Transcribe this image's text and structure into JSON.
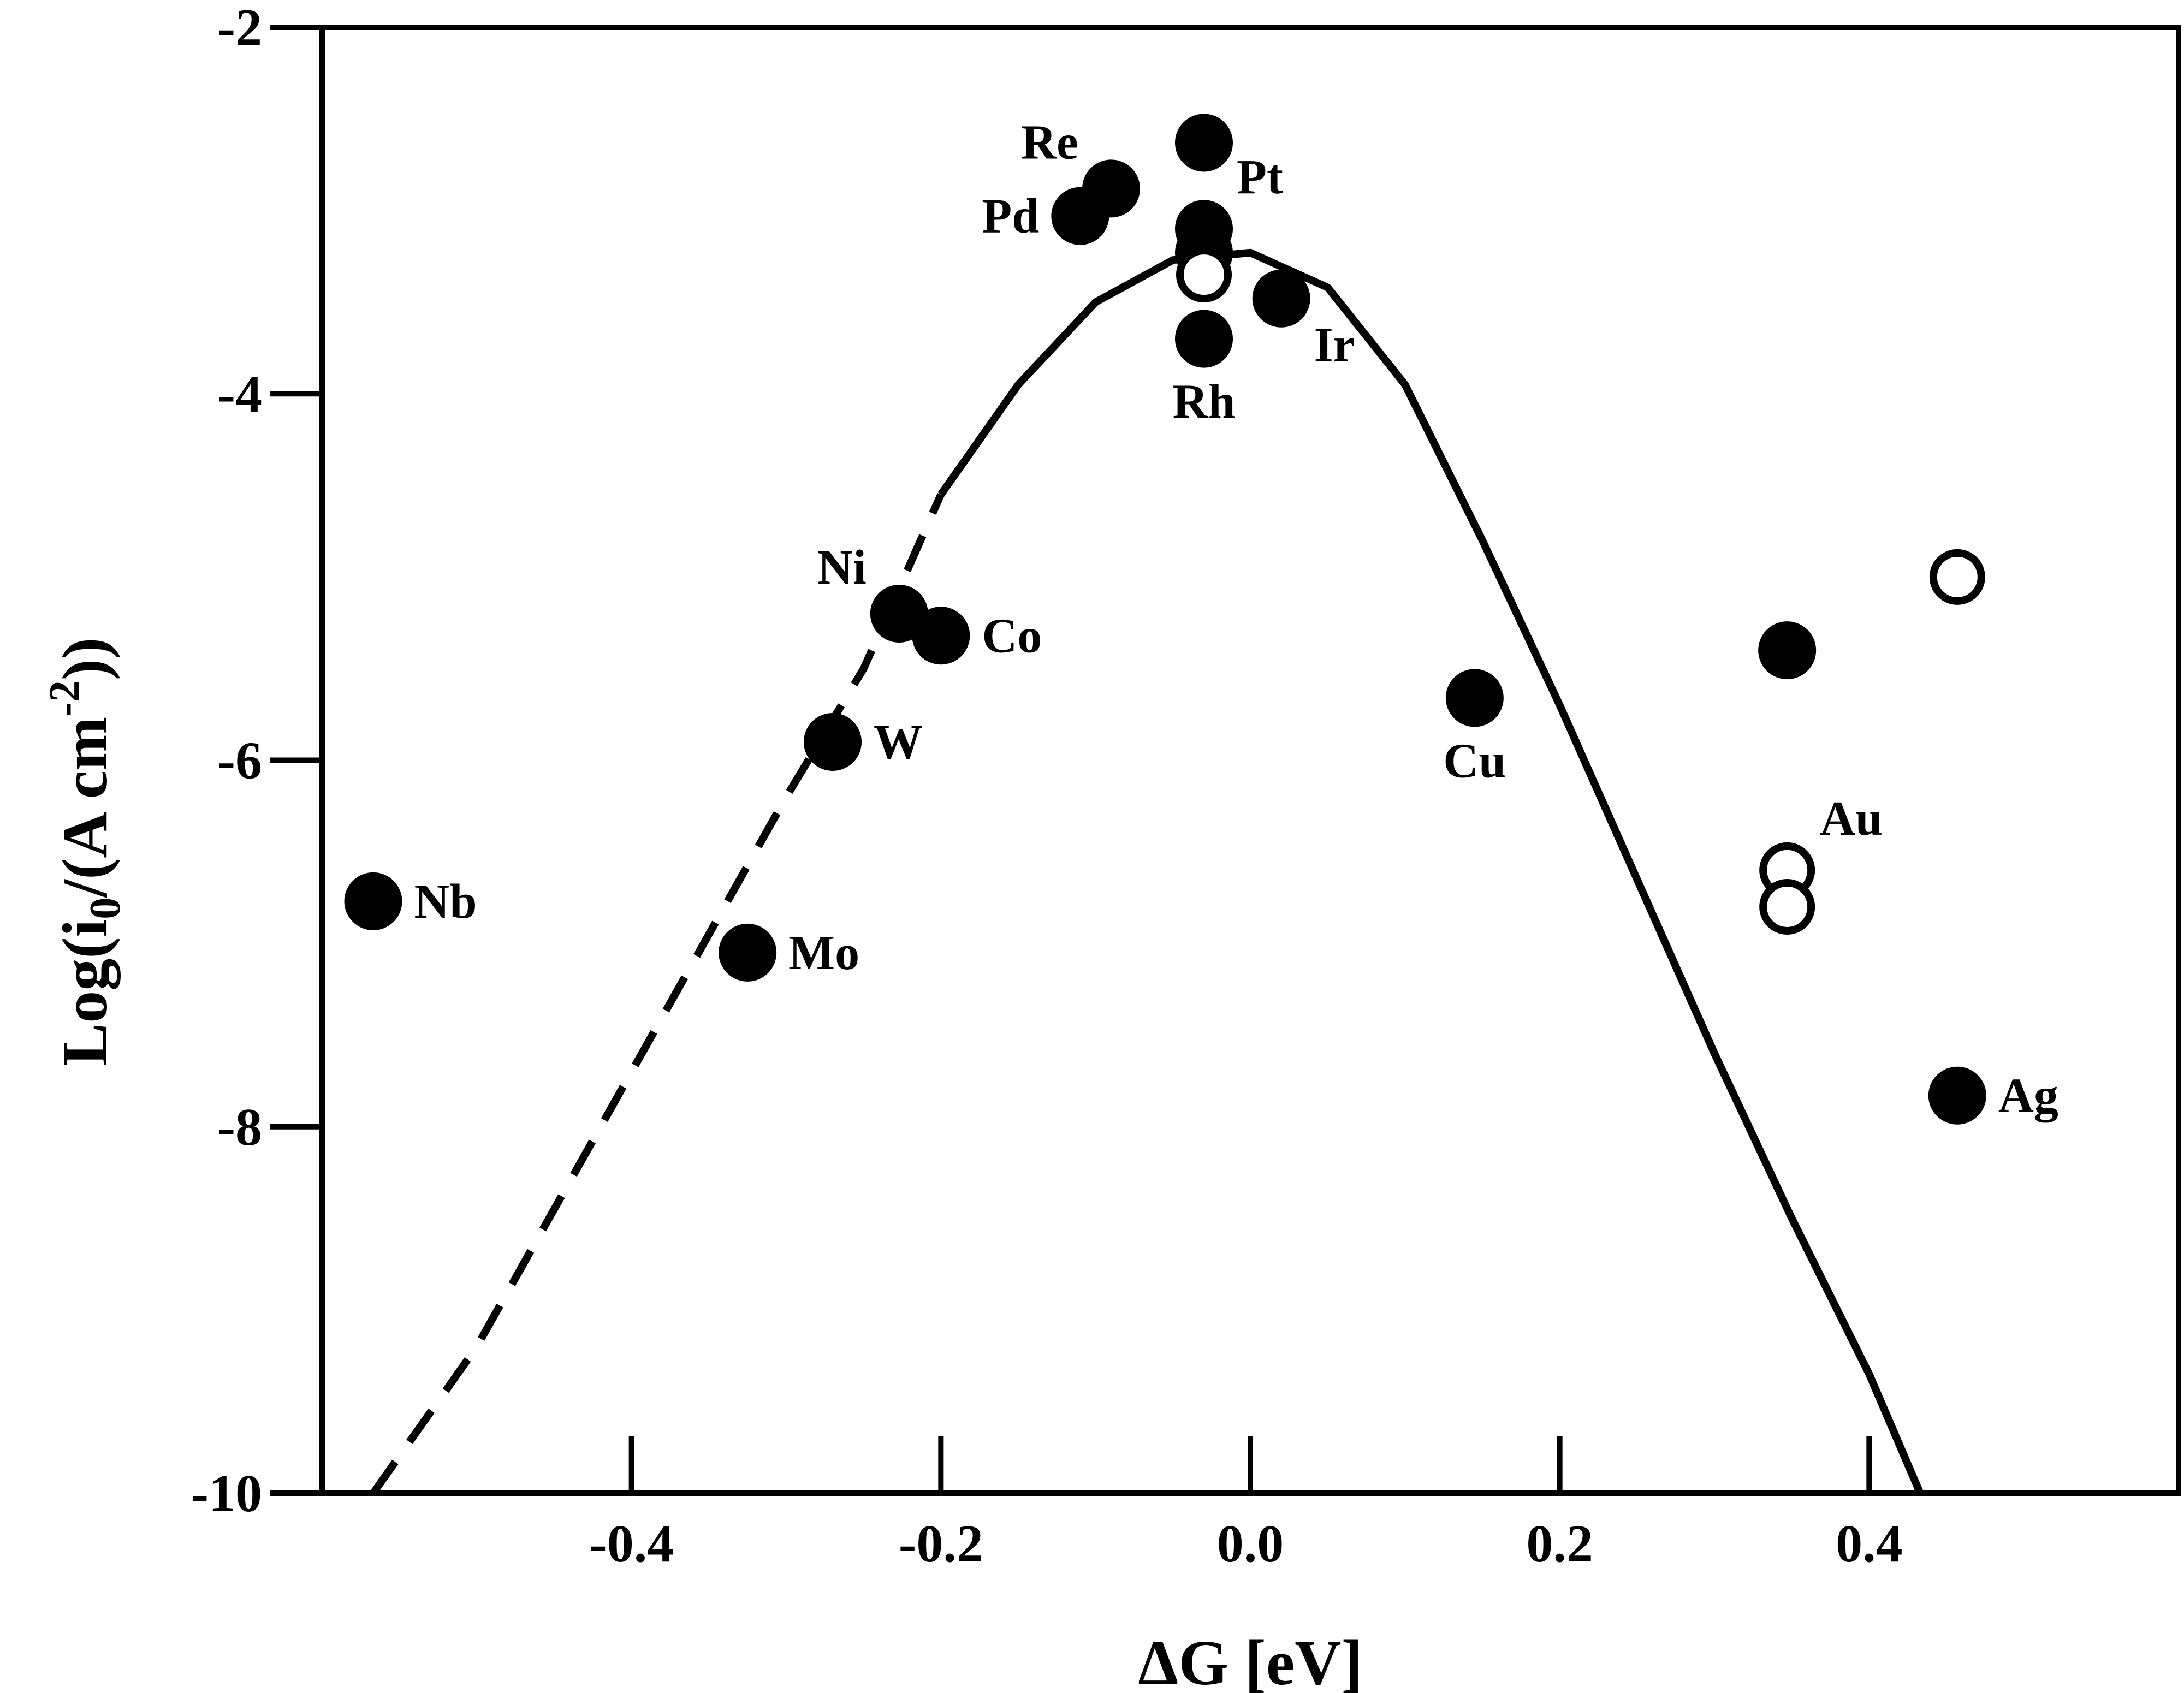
{
  "chart_data": {
    "type": "scatter",
    "title": "",
    "xlabel": "ΔG [eV]",
    "ylabel": {
      "prefix": "Log(i",
      "sub": "0",
      "mid": "/(A cm",
      "sup": "-2",
      "suffix": "))"
    },
    "xlim": [
      -0.6,
      0.6
    ],
    "ylim": [
      -10,
      -2
    ],
    "x_ticks": [
      -0.4,
      -0.2,
      0.0,
      0.2,
      0.4
    ],
    "x_tick_labels": [
      "-0.4",
      "-0.2",
      "0.0",
      "0.2",
      "0.4"
    ],
    "y_ticks": [
      -10,
      -8,
      -6,
      -4,
      -2
    ],
    "y_tick_labels": [
      "-10",
      "-8",
      "-6",
      "-4",
      "-2"
    ],
    "grid": false,
    "legend": "none",
    "colors": {
      "marker": "#000000",
      "open_marker_fill": "#ffffff",
      "curve": "#000000"
    },
    "filled_points": [
      {
        "x": -0.567,
        "y": -6.77
      },
      {
        "x": -0.325,
        "y": -7.05
      },
      {
        "x": -0.27,
        "y": -5.9
      },
      {
        "x": -0.227,
        "y": -5.2
      },
      {
        "x": -0.2,
        "y": -5.32
      },
      {
        "x": -0.11,
        "y": -3.03
      },
      {
        "x": -0.09,
        "y": -2.88
      },
      {
        "x": -0.03,
        "y": -2.63
      },
      {
        "x": -0.03,
        "y": -3.1
      },
      {
        "x": -0.03,
        "y": -3.23
      },
      {
        "x": -0.03,
        "y": -3.7
      },
      {
        "x": 0.02,
        "y": -3.48
      },
      {
        "x": 0.145,
        "y": -5.66
      },
      {
        "x": 0.347,
        "y": -5.4
      },
      {
        "x": 0.457,
        "y": -7.83
      }
    ],
    "open_points": [
      {
        "x": -0.03,
        "y": -3.35
      },
      {
        "x": 0.347,
        "y": -6.6
      },
      {
        "x": 0.347,
        "y": -6.8
      },
      {
        "x": 0.457,
        "y": -5.0
      }
    ],
    "labels": [
      {
        "text": "Nb",
        "x": -0.567,
        "y": -6.77,
        "anchor": "right"
      },
      {
        "text": "Mo",
        "x": -0.325,
        "y": -7.05,
        "anchor": "right"
      },
      {
        "text": "W",
        "x": -0.27,
        "y": -5.9,
        "anchor": "right"
      },
      {
        "text": "Ni",
        "x": -0.227,
        "y": -5.2,
        "anchor": "upper-left"
      },
      {
        "text": "Co",
        "x": -0.2,
        "y": -5.32,
        "anchor": "right"
      },
      {
        "text": "Pd",
        "x": -0.11,
        "y": -3.03,
        "anchor": "left"
      },
      {
        "text": "Re",
        "x": -0.09,
        "y": -2.88,
        "anchor": "upper-left"
      },
      {
        "text": "Pt",
        "x": -0.03,
        "y": -3.1,
        "anchor": "upper-right"
      },
      {
        "text": "Rh",
        "x": -0.03,
        "y": -3.7,
        "anchor": "below"
      },
      {
        "text": "Ir",
        "x": 0.02,
        "y": -3.48,
        "anchor": "lower-right"
      },
      {
        "text": "Cu",
        "x": 0.145,
        "y": -5.66,
        "anchor": "below"
      },
      {
        "text": "Au",
        "x": 0.347,
        "y": -6.6,
        "anchor": "upper-right"
      },
      {
        "text": "Ag",
        "x": 0.457,
        "y": -7.83,
        "anchor": "right"
      }
    ],
    "volcano_curve": {
      "style_left": "dashed",
      "style_right": "solid",
      "dash_until_x": -0.2,
      "points": [
        {
          "x": -0.567,
          "y": -10.0
        },
        {
          "x": -0.5,
          "y": -9.2
        },
        {
          "x": -0.4,
          "y": -7.7
        },
        {
          "x": -0.3,
          "y": -6.2
        },
        {
          "x": -0.25,
          "y": -5.5
        },
        {
          "x": -0.2,
          "y": -4.55
        },
        {
          "x": -0.15,
          "y": -3.95
        },
        {
          "x": -0.1,
          "y": -3.5
        },
        {
          "x": -0.05,
          "y": -3.27
        },
        {
          "x": 0.0,
          "y": -3.23
        },
        {
          "x": 0.05,
          "y": -3.42
        },
        {
          "x": 0.1,
          "y": -3.95
        },
        {
          "x": 0.15,
          "y": -4.8
        },
        {
          "x": 0.2,
          "y": -5.7
        },
        {
          "x": 0.25,
          "y": -6.65
        },
        {
          "x": 0.3,
          "y": -7.6
        },
        {
          "x": 0.35,
          "y": -8.5
        },
        {
          "x": 0.4,
          "y": -9.35
        },
        {
          "x": 0.433,
          "y": -10.0
        }
      ]
    }
  }
}
